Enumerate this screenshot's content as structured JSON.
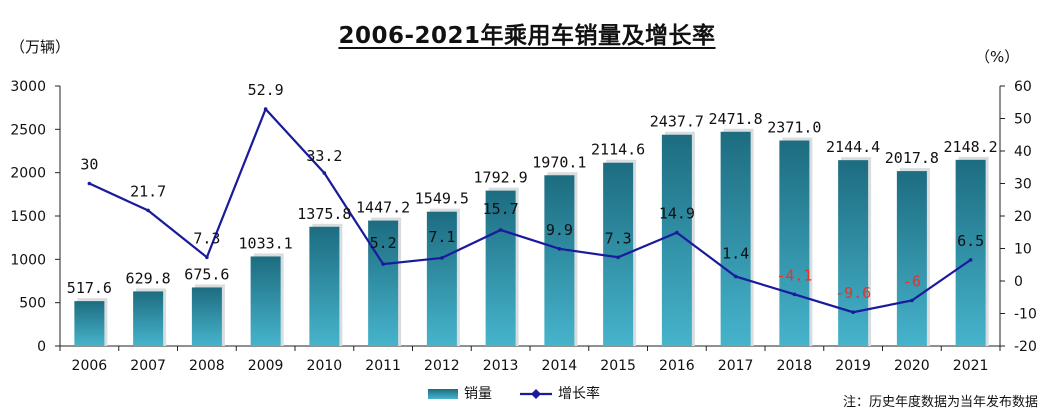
{
  "chart_data": {
    "type": "bar",
    "title": "2006-2021年乘用车销量及增长率",
    "categories": [
      "2006",
      "2007",
      "2008",
      "2009",
      "2010",
      "2011",
      "2012",
      "2013",
      "2014",
      "2015",
      "2016",
      "2017",
      "2018",
      "2019",
      "2020",
      "2021"
    ],
    "y_left_unit": "（万辆）",
    "y_right_unit": "（%）",
    "y_left_ticks": [
      0,
      500,
      1000,
      1500,
      2000,
      2500,
      3000
    ],
    "y_right_ticks": [
      -20,
      -10,
      0,
      10,
      20,
      30,
      40,
      50,
      60
    ],
    "ylim_left": [
      0,
      3000
    ],
    "ylim_right": [
      -20,
      60
    ],
    "series": [
      {
        "name": "销量",
        "type": "bar",
        "axis": "left",
        "values": [
          517.6,
          629.8,
          675.6,
          1033.1,
          1375.8,
          1447.2,
          1549.5,
          1792.9,
          1970.1,
          2114.6,
          2437.7,
          2471.8,
          2371.0,
          2144.4,
          2017.8,
          2148.2
        ],
        "labels": [
          "517.6",
          "629.8",
          "675.6",
          "1033.1",
          "1375.8",
          "1447.2",
          "1549.5",
          "1792.9",
          "1970.1",
          "2114.6",
          "2437.7",
          "2471.8",
          "2371.0",
          "2144.4",
          "2017.8",
          "2148.2"
        ]
      },
      {
        "name": "增长率",
        "type": "line",
        "axis": "right",
        "values": [
          30,
          21.7,
          7.3,
          52.9,
          33.2,
          5.2,
          7.1,
          15.7,
          9.9,
          7.3,
          14.9,
          1.4,
          -4.1,
          -9.6,
          -6,
          6.5
        ],
        "labels": [
          "30",
          "21.7",
          "7.3",
          "52.9",
          "33.2",
          "5.2",
          "7.1",
          "15.7",
          "9.9",
          "7.3",
          "14.9",
          "1.4",
          "-4.1",
          "-9.6",
          "-6",
          "6.5"
        ]
      }
    ],
    "colors": {
      "bar_top": "#1d6c80",
      "bar_bottom": "#46b4cc",
      "line": "#1a1a9c",
      "negative_label": "#e8312a",
      "text": "#111111"
    },
    "grid": false,
    "legend_position": "bottom-center"
  },
  "note": "注：历史年度数据为当年发布数据"
}
